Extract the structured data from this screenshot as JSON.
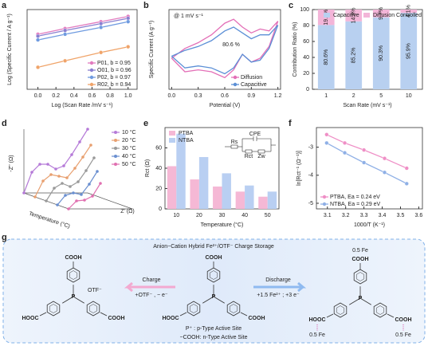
{
  "chart_data": [
    {
      "label": "a",
      "type": "line",
      "markers": true,
      "xlabel": "Log (Scan Rate /mV s⁻¹)",
      "ylabel": "Log (Specific Current / A g⁻¹)",
      "x": [
        0,
        0.301,
        0.699,
        1
      ],
      "xlim": [
        -0.12,
        1.1
      ],
      "ylim": [
        -1,
        1.1
      ],
      "xticks": [
        {
          "value": 0,
          "label": "0.0"
        },
        0.2,
        0.4,
        0.6,
        0.8,
        {
          "value": 1,
          "label": "1.0"
        }
      ],
      "legend": "lower right",
      "series": [
        {
          "name": "P01, b = 0.95",
          "color": "#e27bbf",
          "values": [
            0.45,
            0.6,
            0.78,
            0.92
          ]
        },
        {
          "name": "O01, b = 0.96",
          "color": "#8a7fd0",
          "values": [
            0.4,
            0.55,
            0.73,
            0.87
          ]
        },
        {
          "name": "P02, b = 0.97",
          "color": "#6f9be0",
          "values": [
            0.3,
            0.45,
            0.63,
            0.78
          ]
        },
        {
          "name": "R02, b = 0.94",
          "color": "#f0a46a",
          "values": [
            -0.42,
            -0.25,
            -0.03,
            0.12
          ]
        }
      ]
    },
    {
      "label": "b",
      "type": "line",
      "markers": false,
      "xlabel": "Potential (V)",
      "ylabel": "Specific Current (A g⁻¹)",
      "x": [
        0,
        0.15,
        0.3,
        0.45,
        0.6,
        0.7,
        0.8,
        0.9,
        1.0,
        1.1,
        1.2,
        1.1,
        1.0,
        0.9,
        0.8,
        0.7,
        0.6,
        0.45,
        0.3,
        0.15,
        0
      ],
      "xlim": [
        -0.03,
        1.23
      ],
      "ylim": [
        -1,
        1.05
      ],
      "xticks": [
        {
          "value": 0,
          "label": "0.0"
        },
        0.3,
        0.6,
        0.9,
        1.2
      ],
      "legend": "lower right",
      "annotations": [
        "@ 1 mV s⁻¹",
        "80.6 %"
      ],
      "series": [
        {
          "name": "Diffusion",
          "color": "#e36fb7",
          "values": [
            -0.2,
            0.05,
            0.2,
            0.4,
            0.7,
            0.8,
            0.6,
            0.45,
            0.55,
            0.5,
            0.75,
            0.1,
            -0.2,
            -0.3,
            -0.1,
            -0.5,
            -0.7,
            -0.55,
            -0.5,
            -0.55,
            -0.2
          ]
        },
        {
          "name": "Capacitive",
          "color": "#5b8fd6",
          "values": [
            -0.15,
            0,
            0.1,
            0.25,
            0.5,
            0.6,
            0.45,
            0.3,
            0.4,
            0.4,
            0.65,
            0.05,
            -0.25,
            -0.3,
            -0.1,
            -0.45,
            -0.6,
            -0.45,
            -0.4,
            -0.45,
            -0.15
          ]
        }
      ]
    },
    {
      "label": "c",
      "type": "bar",
      "stacked": true,
      "xlabel": "Scan Rate (mV s⁻¹)",
      "ylabel": "Contribution Ratio (%)",
      "categories": [
        "1",
        "2",
        "5",
        "10"
      ],
      "ylim": [
        0,
        100
      ],
      "yticks": [
        0,
        20,
        40,
        60,
        80,
        100
      ],
      "legend": "upper center",
      "series": [
        {
          "name": "Capacitive",
          "color": "#b8d0f0",
          "values": [
            80.6,
            85.2,
            90.3,
            95.9
          ],
          "value_labels": [
            "80.6%",
            "85.2%",
            "90.3%",
            "95.9%"
          ]
        },
        {
          "name": "Diffusion Controlled",
          "color": "#f3b5d8",
          "values": [
            19.4,
            14.8,
            9.7,
            4.1
          ],
          "value_labels": [
            "19.4%",
            "14.8%",
            "9.7%",
            "4.1%"
          ]
        }
      ]
    },
    {
      "label": "d",
      "type": "waterfall",
      "xlabel": "Z' (Ω)",
      "ylabel": "-Z'' (Ω)",
      "zlabel": "Temperature (°C)",
      "x": [
        0,
        1,
        2,
        3,
        4,
        5,
        6,
        7,
        8
      ],
      "xlim": [
        0,
        8
      ],
      "ylim": [
        0,
        8
      ],
      "legend": "upper right",
      "series": [
        {
          "name": "10 °C",
          "color": "#b57ad8",
          "values": [
            0,
            2.6,
            3.6,
            3.6,
            3,
            3.4,
            4.8,
            6.4,
            8
          ]
        },
        {
          "name": "20 °C",
          "color": "#e8a070",
          "values": [
            0,
            2,
            2.8,
            2.6,
            2.4,
            3.6,
            5,
            6.5,
            null
          ]
        },
        {
          "name": "30 °C",
          "color": "#9a9a9a",
          "values": [
            0,
            1.6,
            2.2,
            1.8,
            2.4,
            3.8,
            5.4,
            null,
            null
          ]
        },
        {
          "name": "40 °C",
          "color": "#6a8fd0",
          "values": [
            0,
            1.2,
            1.5,
            1.3,
            2.6,
            4.2,
            null,
            null,
            null
          ]
        },
        {
          "name": "50 °C",
          "color": "#e070b0",
          "values": [
            0,
            1,
            1.1,
            1.6,
            3.2,
            null,
            null,
            null,
            null
          ]
        }
      ]
    },
    {
      "label": "e",
      "type": "bar",
      "stacked": false,
      "xlabel": "Temperature (°C)",
      "ylabel": "Rct (Ω)",
      "categories": [
        "10",
        "20",
        "30",
        "40",
        "50"
      ],
      "ylim": [
        0,
        80
      ],
      "yticks": [
        0,
        20,
        40,
        60
      ],
      "legend": "upper left",
      "inset_labels": [
        "Rs",
        "CPE",
        "Rct",
        "Zw"
      ],
      "series": [
        {
          "name": "PTBA",
          "color": "#f5b8d5",
          "values": [
            42,
            29,
            22,
            17,
            12
          ]
        },
        {
          "name": "NTBA",
          "color": "#b9cff2",
          "values": [
            74,
            51,
            35,
            23,
            17
          ]
        }
      ]
    },
    {
      "label": "f",
      "type": "line",
      "markers": true,
      "xlabel": "1000/T (K⁻¹)",
      "ylabel": "ln[Rct⁻¹ (Ω⁻¹)]",
      "x": [
        3.096,
        3.195,
        3.3,
        3.413,
        3.534
      ],
      "xlim": [
        3.04,
        3.62
      ],
      "ylim": [
        -5.2,
        -2.3
      ],
      "xticks": [
        3.1,
        3.2,
        3.3,
        3.4,
        3.5,
        3.6
      ],
      "yticks": [
        -3,
        -4,
        -5
      ],
      "legend": "lower left",
      "series": [
        {
          "name": "PTBA, Ea = 0.24 eV",
          "color": "#ef8fc6",
          "values": [
            -2.55,
            -2.85,
            -3.1,
            -3.4,
            -3.75
          ]
        },
        {
          "name": "NTBA, Ea = 0.29 eV",
          "color": "#8fb0e6",
          "values": [
            -2.85,
            -3.2,
            -3.55,
            -3.9,
            -4.3
          ]
        }
      ]
    }
  ],
  "scheme": {
    "label": "g",
    "title": "Anion−Cation Hybrid Fe²⁺/OTF⁻ Charge Storage",
    "charge": "Charge",
    "charge_reaction": "+OTF⁻ , − e⁻",
    "discharge": "Discharge",
    "discharge_reaction": "+1.5 Fe²⁺ ; +3 e⁻",
    "p_site": "P⁺ : p-Type Active Site",
    "n_site": "−COOH: n-Type Active Site",
    "cooh": "COOH",
    "hooc": "HOOC",
    "otf": "OTF⁻",
    "fe": "0.5 Fe",
    "p": "P"
  }
}
